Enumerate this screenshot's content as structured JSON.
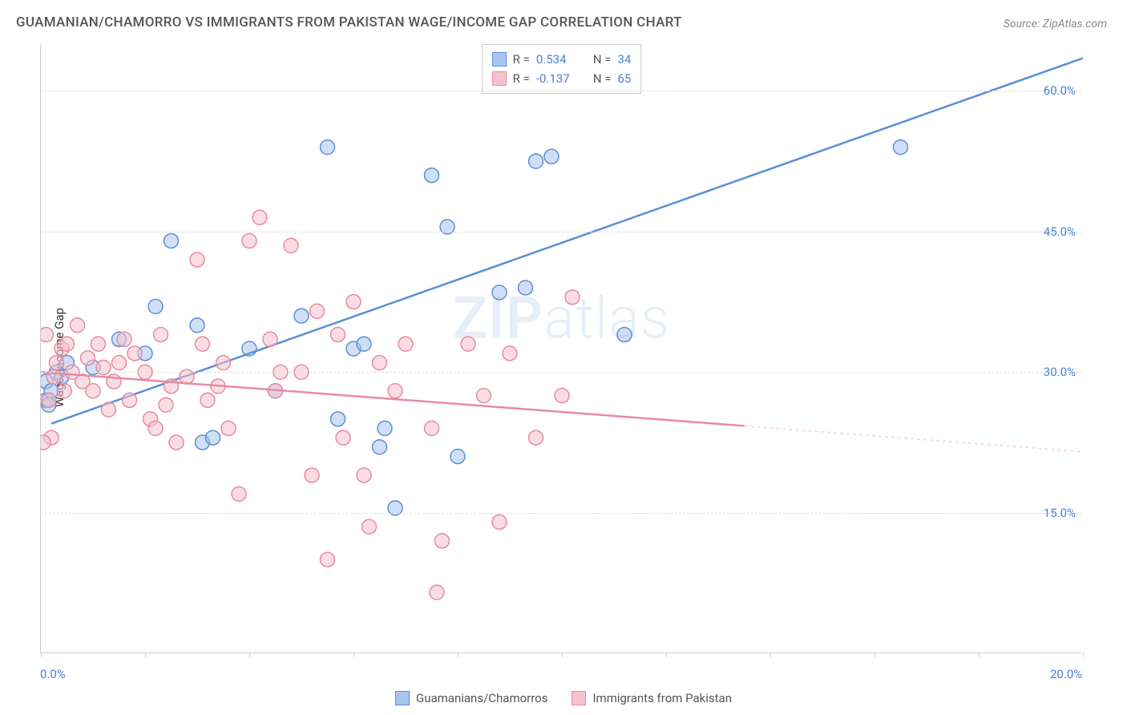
{
  "title": "GUAMANIAN/CHAMORRO VS IMMIGRANTS FROM PAKISTAN WAGE/INCOME GAP CORRELATION CHART",
  "source": "Source: ZipAtlas.com",
  "y_axis_label": "Wage/Income Gap",
  "watermark_bold": "ZIP",
  "watermark_light": "atlas",
  "chart": {
    "type": "scatter",
    "xlim": [
      0,
      20
    ],
    "ylim": [
      0,
      65
    ],
    "x_ticks": [
      0,
      2,
      4,
      6,
      8,
      10,
      12,
      14,
      16,
      18,
      20
    ],
    "x_tick_labels": {
      "0": "0.0%",
      "20": "20.0%"
    },
    "y_gridlines": [
      15,
      30,
      45,
      60
    ],
    "y_tick_labels": [
      "15.0%",
      "30.0%",
      "45.0%",
      "60.0%"
    ],
    "background_color": "#ffffff",
    "grid_color": "#dddddd",
    "axis_color": "#cccccc",
    "tick_label_color": "#4a7fd8",
    "marker_radius": 9,
    "marker_opacity": 0.55,
    "series": [
      {
        "name": "Guamanians/Chamorros",
        "color_fill": "#a9c5ef",
        "color_stroke": "#5b8fd8",
        "r": 0.534,
        "n": 34,
        "regression": {
          "x1": 0.2,
          "y1": 24.5,
          "x2": 20.0,
          "y2": 63.5,
          "solid_until_x": 20.0
        },
        "points": [
          [
            0.1,
            29
          ],
          [
            0.1,
            27
          ],
          [
            0.2,
            28
          ],
          [
            0.3,
            30
          ],
          [
            0.5,
            31
          ],
          [
            1.5,
            33.5
          ],
          [
            2.0,
            32
          ],
          [
            2.2,
            37
          ],
          [
            2.5,
            44
          ],
          [
            3.0,
            35
          ],
          [
            3.1,
            22.5
          ],
          [
            3.3,
            23
          ],
          [
            4.0,
            32.5
          ],
          [
            4.5,
            28
          ],
          [
            5.0,
            36
          ],
          [
            5.5,
            54
          ],
          [
            5.7,
            25
          ],
          [
            6.0,
            32.5
          ],
          [
            6.2,
            33
          ],
          [
            6.5,
            22
          ],
          [
            6.6,
            24
          ],
          [
            6.8,
            15.5
          ],
          [
            7.5,
            51
          ],
          [
            7.8,
            45.5
          ],
          [
            8.0,
            21
          ],
          [
            8.8,
            38.5
          ],
          [
            9.5,
            52.5
          ],
          [
            9.8,
            53
          ],
          [
            9.3,
            39
          ],
          [
            11.2,
            34
          ],
          [
            16.5,
            54
          ],
          [
            0.15,
            26.5
          ],
          [
            0.4,
            29.5
          ],
          [
            1.0,
            30.5
          ]
        ]
      },
      {
        "name": "Immigrants from Pakistan",
        "color_fill": "#f5c1cd",
        "color_stroke": "#e88aa2",
        "r": -0.137,
        "n": 65,
        "regression": {
          "x1": 0.0,
          "y1": 30.0,
          "x2": 20.0,
          "y2": 21.5,
          "solid_until_x": 13.5
        },
        "points": [
          [
            0.1,
            34
          ],
          [
            0.2,
            23
          ],
          [
            0.3,
            31
          ],
          [
            0.4,
            32.5
          ],
          [
            0.5,
            33
          ],
          [
            0.6,
            30
          ],
          [
            0.7,
            35
          ],
          [
            0.8,
            29
          ],
          [
            0.9,
            31.5
          ],
          [
            1.0,
            28
          ],
          [
            1.1,
            33
          ],
          [
            1.2,
            30.5
          ],
          [
            1.3,
            26
          ],
          [
            1.4,
            29
          ],
          [
            1.5,
            31
          ],
          [
            1.7,
            27
          ],
          [
            1.8,
            32
          ],
          [
            2.0,
            30
          ],
          [
            2.1,
            25
          ],
          [
            2.2,
            24
          ],
          [
            2.3,
            34
          ],
          [
            2.5,
            28.5
          ],
          [
            2.6,
            22.5
          ],
          [
            2.8,
            29.5
          ],
          [
            3.0,
            42
          ],
          [
            3.2,
            27
          ],
          [
            3.4,
            28.5
          ],
          [
            3.5,
            31
          ],
          [
            3.6,
            24
          ],
          [
            3.8,
            17
          ],
          [
            4.0,
            44
          ],
          [
            4.2,
            46.5
          ],
          [
            4.4,
            33.5
          ],
          [
            4.5,
            28
          ],
          [
            4.8,
            43.5
          ],
          [
            5.0,
            30
          ],
          [
            5.2,
            19
          ],
          [
            5.5,
            10
          ],
          [
            5.7,
            34
          ],
          [
            5.8,
            23
          ],
          [
            6.0,
            37.5
          ],
          [
            6.2,
            19
          ],
          [
            6.3,
            13.5
          ],
          [
            6.5,
            31
          ],
          [
            6.8,
            28
          ],
          [
            7.0,
            33
          ],
          [
            7.5,
            24
          ],
          [
            7.6,
            6.5
          ],
          [
            7.7,
            12
          ],
          [
            8.2,
            33
          ],
          [
            8.5,
            27.5
          ],
          [
            8.8,
            14
          ],
          [
            9.0,
            32
          ],
          [
            9.5,
            23
          ],
          [
            10.0,
            27.5
          ],
          [
            10.2,
            38
          ],
          [
            0.05,
            22.5
          ],
          [
            0.15,
            27
          ],
          [
            0.25,
            29.5
          ],
          [
            0.45,
            28
          ],
          [
            1.6,
            33.5
          ],
          [
            2.4,
            26.5
          ],
          [
            3.1,
            33
          ],
          [
            4.6,
            30
          ],
          [
            5.3,
            36.5
          ]
        ]
      }
    ]
  },
  "legend_labels": {
    "r_label": "R =",
    "n_label": "N ="
  }
}
